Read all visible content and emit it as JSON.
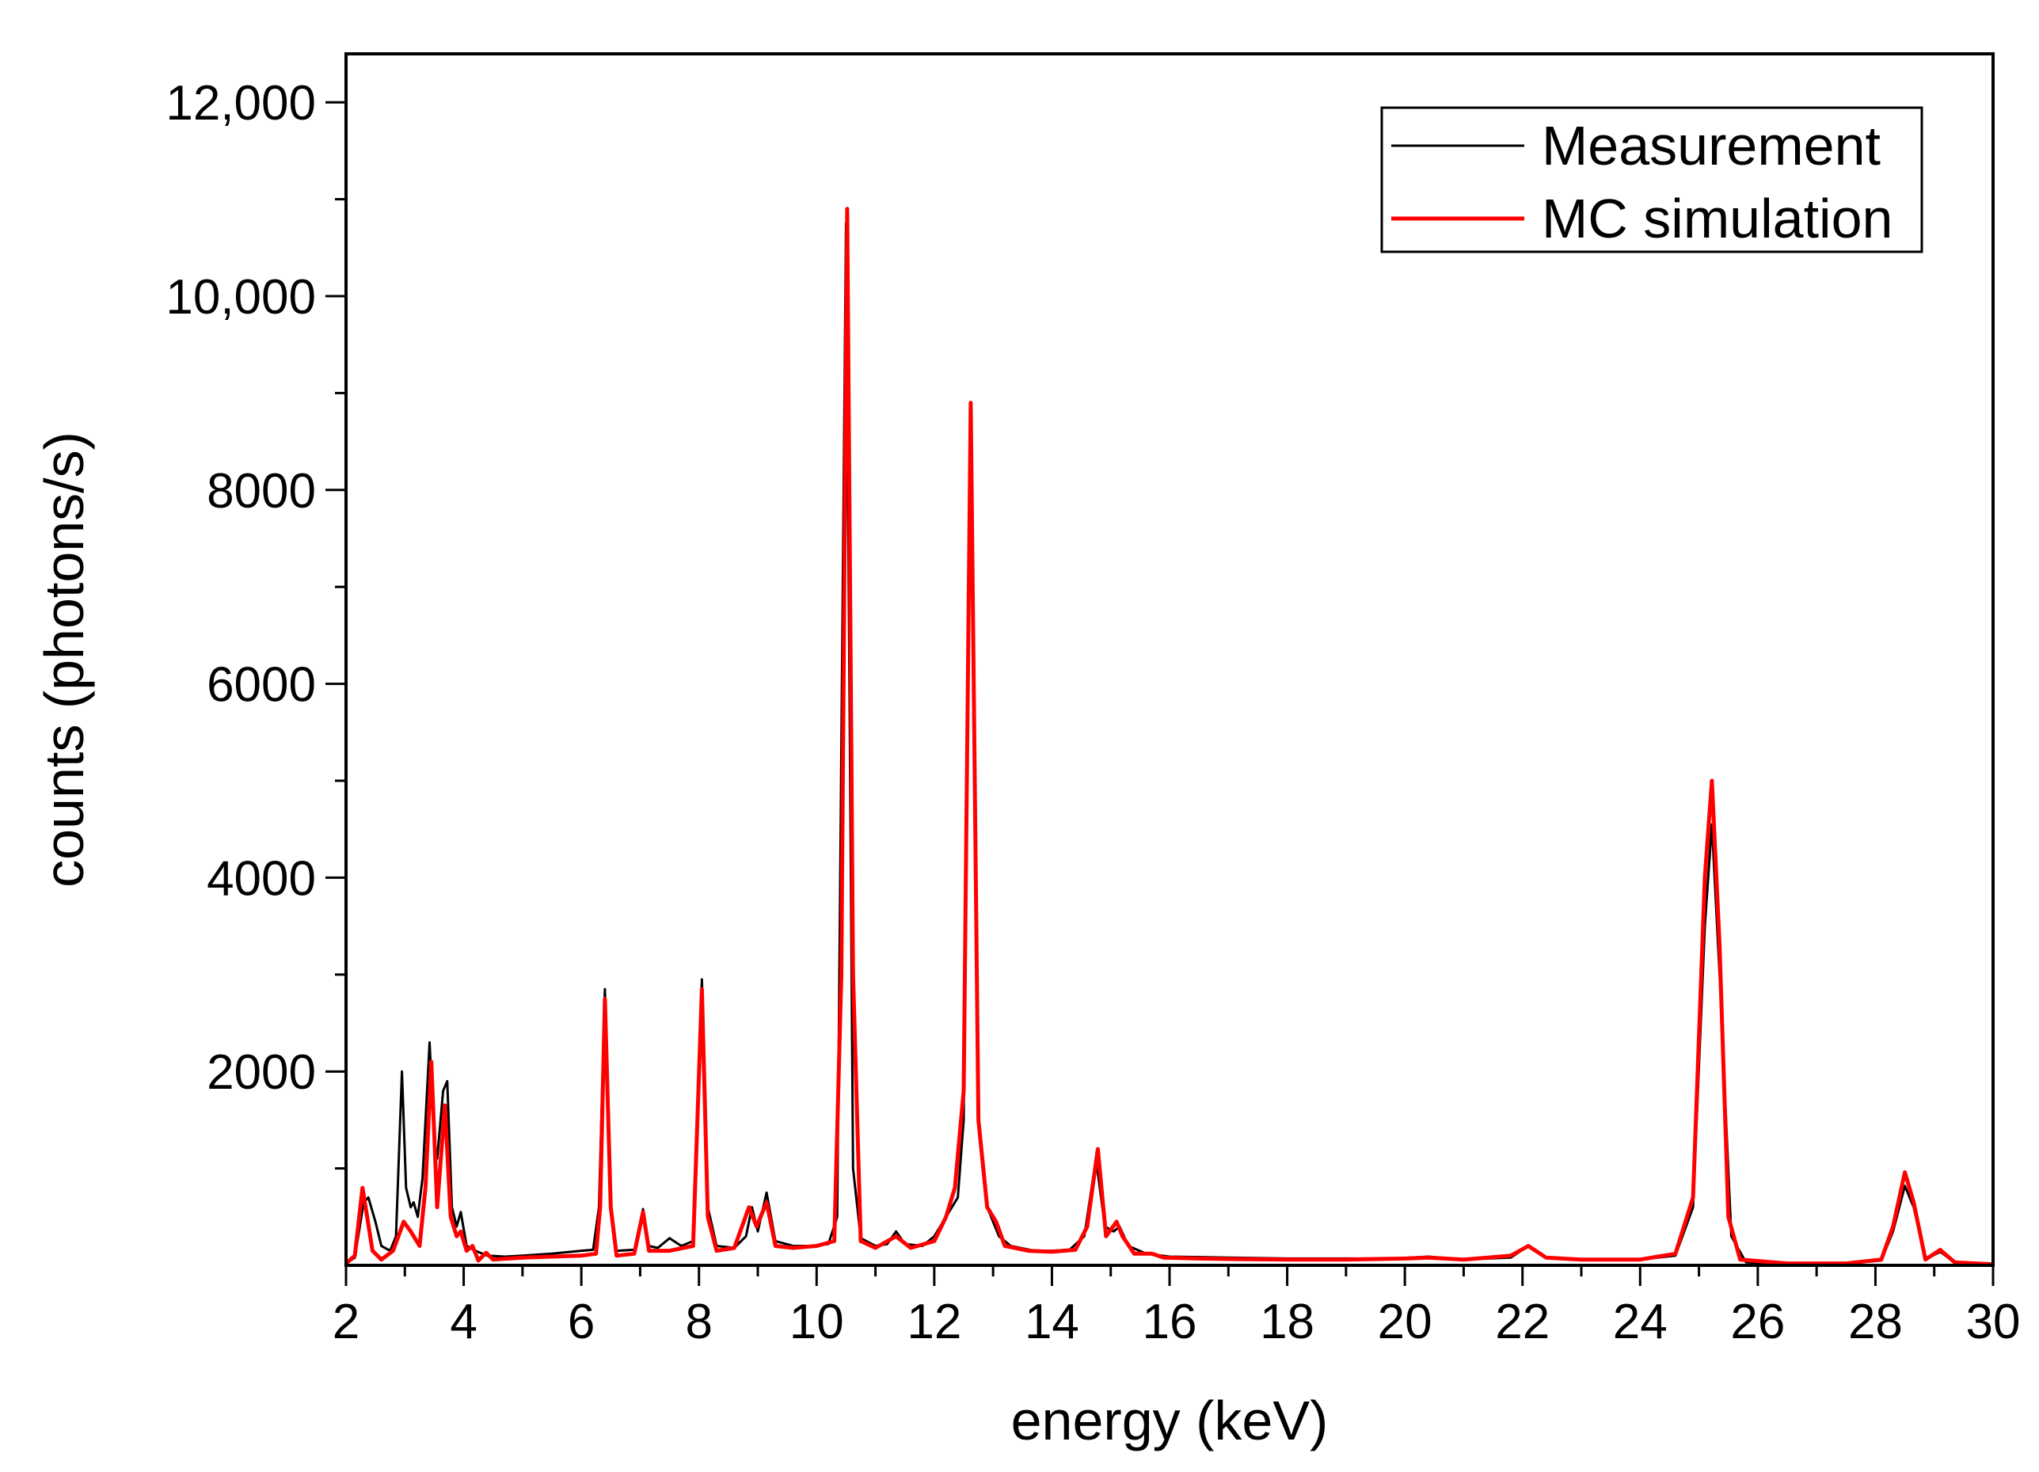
{
  "chart_data": {
    "type": "line",
    "title": "",
    "xlabel": "energy (keV)",
    "ylabel": "counts (photons/s)",
    "xlim": [
      2,
      30
    ],
    "ylim": [
      0,
      12500
    ],
    "x_ticks": [
      2,
      4,
      6,
      8,
      10,
      12,
      14,
      16,
      18,
      20,
      22,
      24,
      26,
      28,
      30
    ],
    "x_tick_labels": [
      "2",
      "4",
      "6",
      "8",
      "10",
      "12",
      "14",
      "16",
      "18",
      "20",
      "22",
      "24",
      "26",
      "28",
      "30"
    ],
    "y_ticks": [
      2000,
      4000,
      6000,
      8000,
      10000,
      12000
    ],
    "y_tick_labels": [
      "2000",
      "4000",
      "6000",
      "8000",
      "10,000",
      "12,000"
    ],
    "grid": false,
    "legend": {
      "position": "top-right",
      "entries": [
        "Measurement",
        "MC simulation"
      ]
    },
    "colors": {
      "Measurement": "#000000",
      "MC simulation": "#ff0000"
    },
    "series": [
      {
        "name": "Measurement",
        "color": "#000000",
        "points": [
          [
            2.0,
            20
          ],
          [
            2.15,
            80
          ],
          [
            2.3,
            650
          ],
          [
            2.38,
            700
          ],
          [
            2.5,
            450
          ],
          [
            2.6,
            200
          ],
          [
            2.75,
            150
          ],
          [
            2.85,
            300
          ],
          [
            2.95,
            2000
          ],
          [
            3.02,
            800
          ],
          [
            3.1,
            600
          ],
          [
            3.15,
            650
          ],
          [
            3.22,
            500
          ],
          [
            3.3,
            900
          ],
          [
            3.42,
            2300
          ],
          [
            3.5,
            1300
          ],
          [
            3.55,
            1100
          ],
          [
            3.65,
            1800
          ],
          [
            3.72,
            1900
          ],
          [
            3.8,
            600
          ],
          [
            3.88,
            400
          ],
          [
            3.95,
            550
          ],
          [
            4.05,
            200
          ],
          [
            4.2,
            150
          ],
          [
            4.4,
            100
          ],
          [
            4.7,
            90
          ],
          [
            5.0,
            100
          ],
          [
            5.5,
            120
          ],
          [
            6.0,
            150
          ],
          [
            6.2,
            160
          ],
          [
            6.3,
            600
          ],
          [
            6.4,
            2850
          ],
          [
            6.5,
            600
          ],
          [
            6.6,
            150
          ],
          [
            6.9,
            160
          ],
          [
            7.05,
            580
          ],
          [
            7.15,
            200
          ],
          [
            7.3,
            180
          ],
          [
            7.5,
            280
          ],
          [
            7.7,
            200
          ],
          [
            7.9,
            250
          ],
          [
            8.05,
            2950
          ],
          [
            8.15,
            600
          ],
          [
            8.3,
            200
          ],
          [
            8.6,
            180
          ],
          [
            8.8,
            300
          ],
          [
            8.9,
            600
          ],
          [
            9.0,
            350
          ],
          [
            9.15,
            750
          ],
          [
            9.3,
            250
          ],
          [
            9.6,
            200
          ],
          [
            9.9,
            200
          ],
          [
            10.2,
            220
          ],
          [
            10.35,
            500
          ],
          [
            10.5,
            10750
          ],
          [
            10.62,
            1000
          ],
          [
            10.75,
            280
          ],
          [
            11.0,
            200
          ],
          [
            11.2,
            220
          ],
          [
            11.35,
            350
          ],
          [
            11.5,
            220
          ],
          [
            11.8,
            200
          ],
          [
            12.0,
            300
          ],
          [
            12.2,
            500
          ],
          [
            12.4,
            700
          ],
          [
            12.5,
            1500
          ],
          [
            12.62,
            8800
          ],
          [
            12.75,
            1500
          ],
          [
            12.9,
            600
          ],
          [
            13.1,
            300
          ],
          [
            13.3,
            200
          ],
          [
            13.7,
            150
          ],
          [
            14.0,
            150
          ],
          [
            14.3,
            160
          ],
          [
            14.55,
            300
          ],
          [
            14.75,
            1100
          ],
          [
            14.9,
            400
          ],
          [
            15.05,
            350
          ],
          [
            15.15,
            400
          ],
          [
            15.3,
            200
          ],
          [
            15.6,
            120
          ],
          [
            16.0,
            90
          ],
          [
            17.0,
            80
          ],
          [
            18.0,
            70
          ],
          [
            19.0,
            70
          ],
          [
            19.8,
            70
          ],
          [
            20.4,
            90
          ],
          [
            21.0,
            60
          ],
          [
            21.8,
            80
          ],
          [
            22.1,
            200
          ],
          [
            22.4,
            80
          ],
          [
            23.0,
            60
          ],
          [
            24.0,
            60
          ],
          [
            24.6,
            100
          ],
          [
            24.9,
            600
          ],
          [
            25.1,
            3500
          ],
          [
            25.22,
            4550
          ],
          [
            25.35,
            3000
          ],
          [
            25.55,
            300
          ],
          [
            25.8,
            30
          ],
          [
            26.5,
            20
          ],
          [
            27.5,
            20
          ],
          [
            28.1,
            50
          ],
          [
            28.3,
            350
          ],
          [
            28.5,
            820
          ],
          [
            28.65,
            600
          ],
          [
            28.85,
            60
          ],
          [
            29.1,
            140
          ],
          [
            29.35,
            30
          ],
          [
            30.0,
            10
          ]
        ]
      },
      {
        "name": "MC simulation",
        "color": "#ff0000",
        "points": [
          [
            2.0,
            20
          ],
          [
            2.15,
            100
          ],
          [
            2.28,
            800
          ],
          [
            2.36,
            500
          ],
          [
            2.45,
            150
          ],
          [
            2.6,
            60
          ],
          [
            2.8,
            150
          ],
          [
            2.98,
            450
          ],
          [
            3.1,
            350
          ],
          [
            3.25,
            200
          ],
          [
            3.35,
            800
          ],
          [
            3.45,
            2100
          ],
          [
            3.55,
            600
          ],
          [
            3.68,
            1650
          ],
          [
            3.78,
            500
          ],
          [
            3.88,
            300
          ],
          [
            3.95,
            350
          ],
          [
            4.05,
            150
          ],
          [
            4.15,
            200
          ],
          [
            4.25,
            50
          ],
          [
            4.38,
            130
          ],
          [
            4.5,
            60
          ],
          [
            5.0,
            80
          ],
          [
            5.5,
            90
          ],
          [
            6.0,
            100
          ],
          [
            6.25,
            120
          ],
          [
            6.32,
            600
          ],
          [
            6.4,
            2750
          ],
          [
            6.5,
            600
          ],
          [
            6.6,
            100
          ],
          [
            6.9,
            120
          ],
          [
            7.05,
            550
          ],
          [
            7.15,
            150
          ],
          [
            7.5,
            150
          ],
          [
            7.9,
            200
          ],
          [
            8.05,
            2850
          ],
          [
            8.15,
            500
          ],
          [
            8.3,
            150
          ],
          [
            8.6,
            180
          ],
          [
            8.85,
            600
          ],
          [
            8.98,
            400
          ],
          [
            9.15,
            650
          ],
          [
            9.3,
            200
          ],
          [
            9.6,
            180
          ],
          [
            10.0,
            200
          ],
          [
            10.3,
            250
          ],
          [
            10.42,
            3000
          ],
          [
            10.52,
            10900
          ],
          [
            10.62,
            3000
          ],
          [
            10.75,
            250
          ],
          [
            11.0,
            180
          ],
          [
            11.35,
            300
          ],
          [
            11.6,
            180
          ],
          [
            12.0,
            250
          ],
          [
            12.2,
            500
          ],
          [
            12.35,
            800
          ],
          [
            12.5,
            1800
          ],
          [
            12.62,
            8900
          ],
          [
            12.75,
            1500
          ],
          [
            12.9,
            600
          ],
          [
            13.05,
            450
          ],
          [
            13.2,
            200
          ],
          [
            13.6,
            150
          ],
          [
            14.0,
            140
          ],
          [
            14.4,
            160
          ],
          [
            14.6,
            400
          ],
          [
            14.78,
            1200
          ],
          [
            14.92,
            300
          ],
          [
            15.1,
            450
          ],
          [
            15.2,
            300
          ],
          [
            15.4,
            120
          ],
          [
            15.7,
            120
          ],
          [
            15.9,
            80
          ],
          [
            16.5,
            70
          ],
          [
            17.0,
            65
          ],
          [
            18.0,
            60
          ],
          [
            19.0,
            60
          ],
          [
            20.0,
            70
          ],
          [
            20.4,
            80
          ],
          [
            21.0,
            60
          ],
          [
            21.8,
            100
          ],
          [
            22.1,
            200
          ],
          [
            22.4,
            80
          ],
          [
            23.0,
            60
          ],
          [
            24.0,
            60
          ],
          [
            24.6,
            120
          ],
          [
            24.9,
            700
          ],
          [
            25.1,
            4000
          ],
          [
            25.22,
            5000
          ],
          [
            25.35,
            3300
          ],
          [
            25.5,
            500
          ],
          [
            25.7,
            60
          ],
          [
            26.5,
            20
          ],
          [
            27.5,
            20
          ],
          [
            28.1,
            60
          ],
          [
            28.3,
            400
          ],
          [
            28.5,
            960
          ],
          [
            28.65,
            650
          ],
          [
            28.85,
            60
          ],
          [
            29.1,
            160
          ],
          [
            29.35,
            30
          ],
          [
            30.0,
            10
          ]
        ]
      }
    ]
  }
}
